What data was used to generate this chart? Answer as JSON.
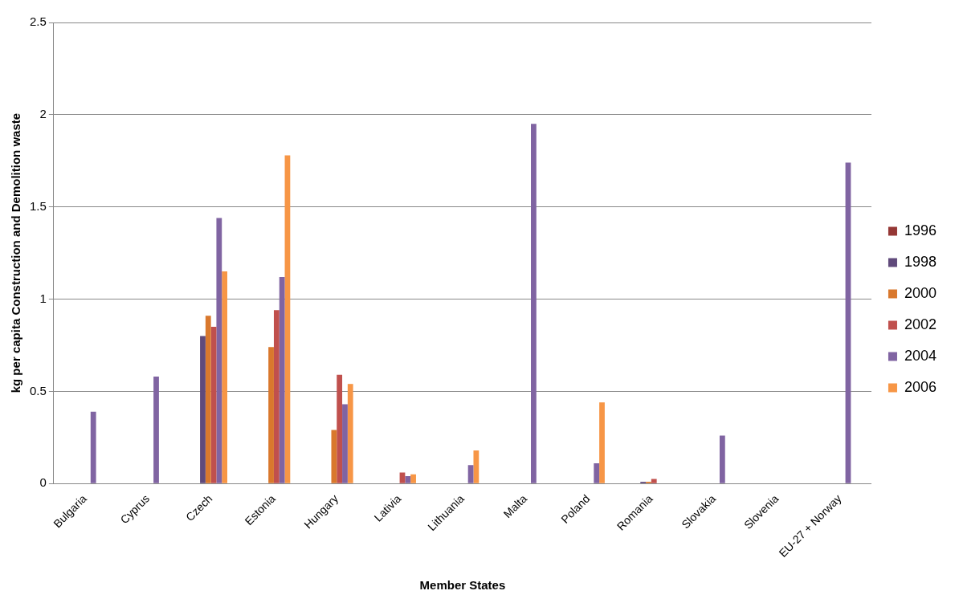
{
  "chart_data": {
    "type": "bar",
    "xlabel": "Member States",
    "ylabel": "kg per capita Construction and Demolition waste",
    "categories": [
      "Bulgaria",
      "Cyprus",
      "Czech",
      "Estonia",
      "Hungary",
      "Lativia",
      "Lithuania",
      "Malta",
      "Poland",
      "Romania",
      "Slovakia",
      "Slovenia",
      "EU-27 + Norway"
    ],
    "series": [
      {
        "name": "1996",
        "color": "#953735",
        "values": [
          null,
          null,
          null,
          null,
          null,
          null,
          null,
          null,
          null,
          null,
          null,
          null,
          null
        ]
      },
      {
        "name": "1998",
        "color": "#604a7b",
        "values": [
          null,
          null,
          0.8,
          null,
          null,
          null,
          null,
          null,
          null,
          0.01,
          null,
          null,
          null
        ]
      },
      {
        "name": "2000",
        "color": "#d9782d",
        "values": [
          null,
          null,
          0.91,
          0.74,
          0.29,
          null,
          null,
          null,
          null,
          0.01,
          null,
          null,
          null
        ]
      },
      {
        "name": "2002",
        "color": "#c0504d",
        "values": [
          null,
          null,
          0.85,
          0.94,
          0.59,
          0.06,
          null,
          null,
          null,
          0.025,
          null,
          null,
          null
        ]
      },
      {
        "name": "2004",
        "color": "#8064a2",
        "values": [
          0.39,
          0.58,
          1.44,
          1.12,
          0.43,
          0.04,
          0.1,
          1.95,
          0.11,
          null,
          0.26,
          null,
          1.74
        ]
      },
      {
        "name": "2006",
        "color": "#f79646",
        "values": [
          null,
          null,
          1.15,
          1.78,
          0.54,
          0.05,
          0.18,
          null,
          0.44,
          null,
          null,
          null,
          null
        ]
      }
    ],
    "ylim": [
      0,
      2.5
    ],
    "yticks": [
      0,
      0.5,
      1,
      1.5,
      2,
      2.5
    ],
    "grid": "y",
    "legend": "right"
  }
}
